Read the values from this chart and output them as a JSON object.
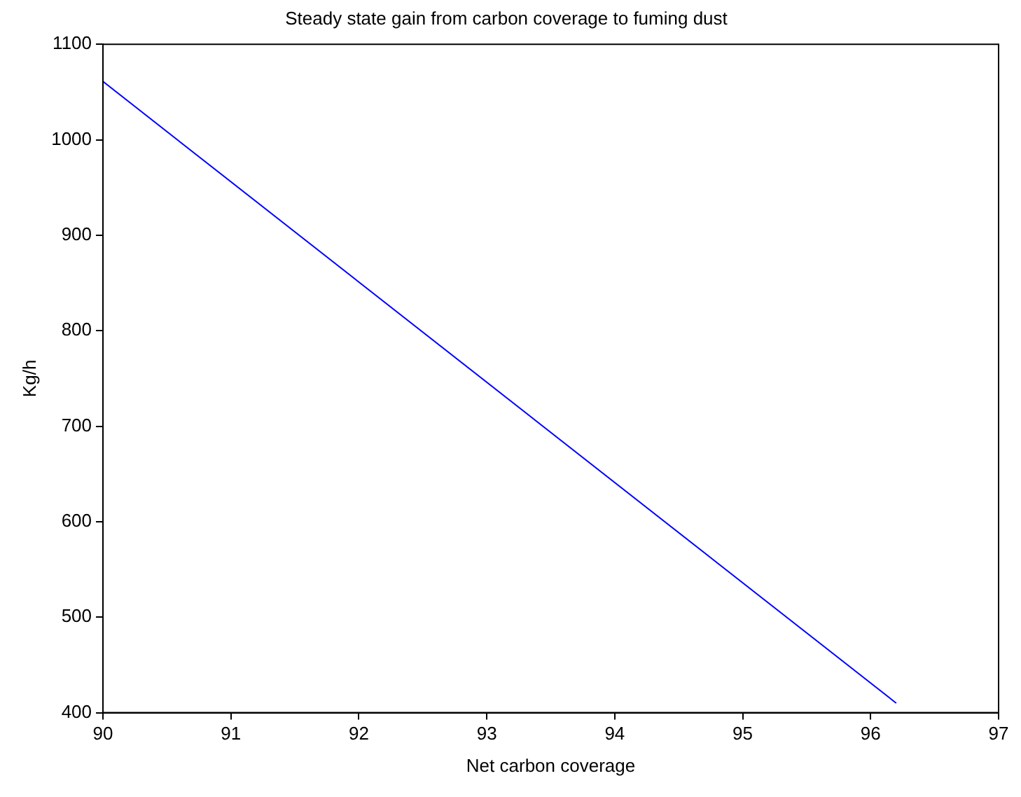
{
  "chart_data": {
    "type": "line",
    "title": "Steady state gain from carbon coverage to fuming dust",
    "xlabel": "Net carbon coverage",
    "ylabel": "Kg/h",
    "x": [
      90,
      96.2
    ],
    "series": [
      {
        "color": "#0000ff",
        "values": [
          1061,
          410
        ]
      }
    ],
    "xlim": [
      90,
      97
    ],
    "xticks": [
      90,
      91,
      92,
      93,
      94,
      95,
      96,
      97
    ],
    "ylim": [
      400,
      1100
    ],
    "yticks": [
      400,
      500,
      600,
      700,
      800,
      900,
      1000,
      1100
    ],
    "grid": false,
    "legend": false,
    "marker": "none",
    "line_style": "solid"
  }
}
